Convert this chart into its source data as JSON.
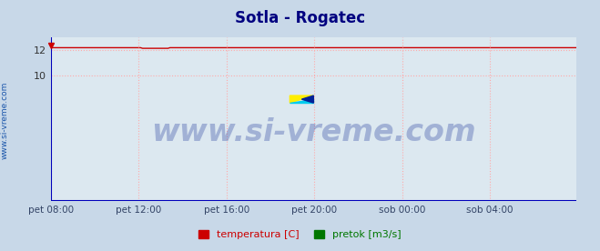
{
  "title": "Sotla - Rogatec",
  "title_color": "#000080",
  "title_fontsize": 12,
  "bg_color": "#c8d8e8",
  "plot_bg_color": "#dce8f0",
  "grid_color": "#ffaaaa",
  "grid_linestyle": ":",
  "xlim": [
    0,
    287
  ],
  "ylim": [
    0,
    13.0
  ],
  "yticks": [
    10,
    12
  ],
  "xtick_labels": [
    "pet 08:00",
    "pet 12:00",
    "pet 16:00",
    "pet 20:00",
    "sob 00:00",
    "sob 04:00"
  ],
  "xtick_positions": [
    0,
    48,
    96,
    144,
    192,
    240
  ],
  "temperatura_value": 12.2,
  "pretok_value": 0.02,
  "line_color_temp": "#cc0000",
  "line_color_pretok": "#007700",
  "line_width": 1.0,
  "watermark_text": "www.si-vreme.com",
  "watermark_color": "#1a3399",
  "watermark_alpha": 0.3,
  "watermark_fontsize": 24,
  "axis_color": "#0000bb",
  "ylabel_text": "www.si-vreme.com",
  "ylabel_color": "#1a55aa",
  "ylabel_fontsize": 6.5,
  "legend_labels": [
    "temperatura [C]",
    "pretok [m3/s]"
  ],
  "legend_colors": [
    "#cc0000",
    "#007700"
  ],
  "figsize": [
    6.59,
    2.76
  ],
  "dpi": 100
}
